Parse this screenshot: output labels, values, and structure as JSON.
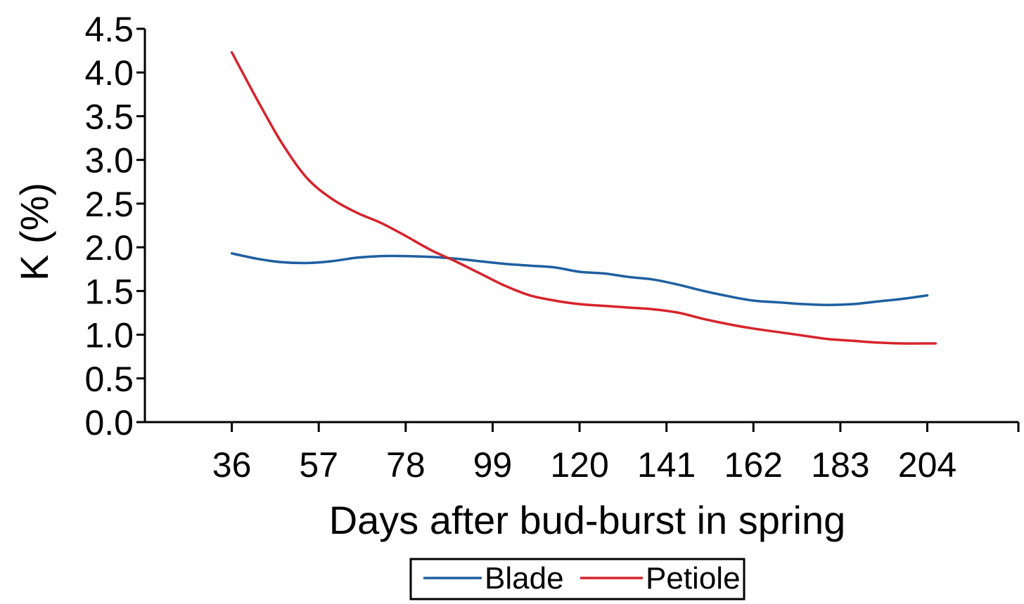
{
  "chart_data": {
    "type": "line",
    "title": "",
    "xlabel": "Days after bud-burst in spring",
    "ylabel": "K (%)",
    "x_ticks": [
      36,
      57,
      78,
      99,
      120,
      141,
      162,
      183,
      204
    ],
    "x_tick_labels": [
      "36",
      "57",
      "78",
      "99",
      "120",
      "141",
      "162",
      "183",
      "204"
    ],
    "y_ticks": [
      0.0,
      0.5,
      1.0,
      1.5,
      2.0,
      2.5,
      3.0,
      3.5,
      4.0,
      4.5
    ],
    "y_tick_labels": [
      "0.0",
      "0.5",
      "1.0",
      "1.5",
      "2.0",
      "2.5",
      "3.0",
      "3.5",
      "4.0",
      "4.5"
    ],
    "xlim": [
      15,
      226
    ],
    "ylim": [
      0,
      4.5
    ],
    "grid": false,
    "legend_position": "bottom",
    "series": [
      {
        "name": "Blade",
        "color": "#1f5fa0",
        "x": [
          36,
          42,
          48,
          54,
          60,
          66,
          72,
          78,
          84,
          90,
          96,
          102,
          108,
          114,
          120,
          126,
          132,
          138,
          144,
          150,
          156,
          162,
          168,
          174,
          180,
          186,
          192,
          198,
          204
        ],
        "y": [
          1.93,
          1.87,
          1.83,
          1.82,
          1.84,
          1.88,
          1.9,
          1.9,
          1.89,
          1.87,
          1.84,
          1.81,
          1.79,
          1.77,
          1.72,
          1.7,
          1.66,
          1.63,
          1.57,
          1.5,
          1.44,
          1.39,
          1.37,
          1.35,
          1.34,
          1.35,
          1.38,
          1.41,
          1.45
        ]
      },
      {
        "name": "Petiole",
        "color": "#d7232b",
        "x": [
          36,
          42,
          48,
          54,
          60,
          66,
          72,
          78,
          84,
          90,
          96,
          102,
          108,
          114,
          120,
          126,
          132,
          138,
          144,
          150,
          156,
          162,
          168,
          174,
          180,
          186,
          192,
          198,
          204,
          206
        ],
        "y": [
          4.23,
          3.7,
          3.2,
          2.8,
          2.56,
          2.4,
          2.28,
          2.13,
          1.97,
          1.84,
          1.7,
          1.56,
          1.45,
          1.39,
          1.35,
          1.33,
          1.31,
          1.29,
          1.25,
          1.18,
          1.12,
          1.07,
          1.03,
          0.99,
          0.95,
          0.93,
          0.91,
          0.9,
          0.9,
          0.9
        ]
      }
    ]
  }
}
